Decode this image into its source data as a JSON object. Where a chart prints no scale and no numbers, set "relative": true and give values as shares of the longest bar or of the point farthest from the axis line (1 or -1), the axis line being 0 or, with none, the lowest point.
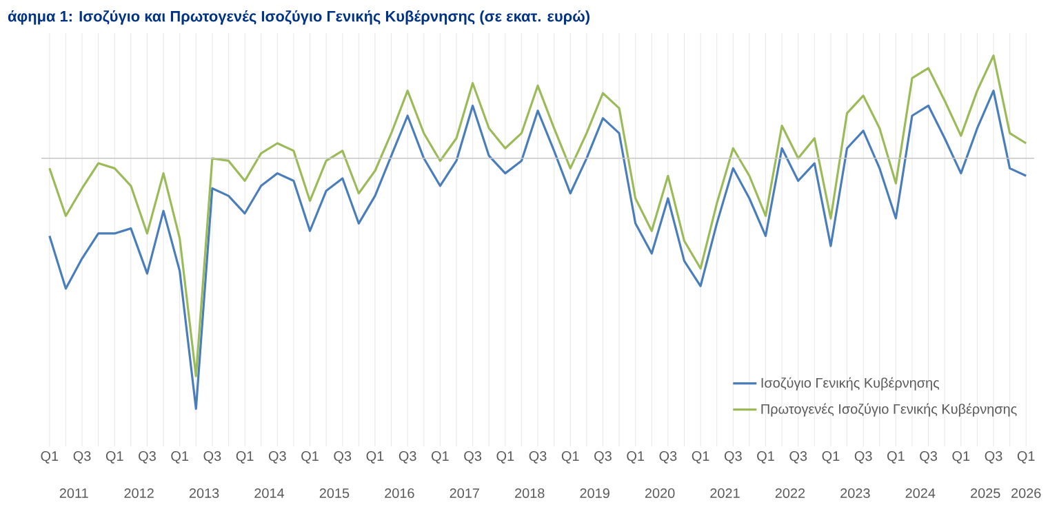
{
  "chart_data": {
    "type": "line",
    "title": "άφημα 1: Ισοζύγιο και Πρωτογενές Ισοζύγιο Γενικής Κυβέρνησης (σε εκατ. ευρώ)",
    "relative": true,
    "grid": "x",
    "legend": "bottom right",
    "marker": "none",
    "line_style": "solid",
    "categories": [
      "Q1",
      null,
      "Q3",
      null,
      "Q1",
      null,
      "Q3",
      null,
      "Q1",
      null,
      "Q3",
      null,
      "Q1",
      null,
      "Q3",
      null,
      "Q1",
      null,
      "Q3",
      null,
      "Q1",
      null,
      "Q3",
      null,
      "Q1",
      null,
      "Q3",
      null,
      "Q1",
      null,
      "Q3",
      null,
      "Q1",
      null,
      "Q3",
      null,
      "Q1",
      null,
      "Q3",
      null,
      "Q1",
      null,
      "Q3",
      null,
      "Q1",
      null,
      "Q3",
      null,
      "Q1",
      null,
      "Q3",
      null,
      "Q1",
      null,
      "Q3",
      null,
      "Q1",
      null,
      "Q3",
      null,
      "Q1"
    ],
    "annotations": [
      "2011",
      "2012",
      "2013",
      "2014",
      "2015",
      "2016",
      "2017",
      "2018",
      "2019",
      "2020",
      "2021",
      "2022",
      "2023",
      "2024",
      "2025",
      "2026"
    ],
    "series": [
      {
        "name": "Ισοζύγιο Γενικής Κυβέρνησης",
        "color": "#4a7ebb",
        "values": [
          -0.31,
          -0.52,
          -0.4,
          -0.3,
          -0.3,
          -0.28,
          -0.46,
          -0.21,
          -0.45,
          -1.0,
          -0.12,
          -0.15,
          -0.22,
          -0.11,
          -0.06,
          -0.09,
          -0.29,
          -0.13,
          -0.08,
          -0.26,
          -0.15,
          0.01,
          0.17,
          0.0,
          -0.11,
          -0.01,
          0.21,
          0.01,
          -0.06,
          -0.01,
          0.19,
          0.03,
          -0.14,
          0.0,
          0.16,
          0.1,
          -0.26,
          -0.38,
          -0.16,
          -0.41,
          -0.51,
          -0.26,
          -0.04,
          -0.16,
          -0.31,
          0.04,
          -0.09,
          -0.02,
          -0.35,
          0.04,
          0.11,
          -0.04,
          -0.24,
          0.17,
          0.21,
          0.08,
          -0.06,
          0.12,
          0.27,
          -0.04,
          -0.07
        ]
      },
      {
        "name": "Πρωτογενές Ισοζύγιο Γενικής Κυβέρνησης",
        "color": "#9bbb59",
        "values": [
          -0.04,
          -0.23,
          -0.12,
          -0.02,
          -0.04,
          -0.11,
          -0.3,
          -0.06,
          -0.32,
          -0.87,
          0.0,
          -0.01,
          -0.09,
          0.02,
          0.06,
          0.03,
          -0.17,
          -0.01,
          0.03,
          -0.14,
          -0.05,
          0.1,
          0.27,
          0.1,
          -0.01,
          0.08,
          0.3,
          0.12,
          0.04,
          0.1,
          0.29,
          0.12,
          -0.04,
          0.1,
          0.26,
          0.2,
          -0.16,
          -0.29,
          -0.07,
          -0.33,
          -0.44,
          -0.18,
          0.04,
          -0.07,
          -0.23,
          0.13,
          0.0,
          0.08,
          -0.24,
          0.18,
          0.25,
          0.12,
          -0.1,
          0.32,
          0.36,
          0.23,
          0.09,
          0.27,
          0.41,
          0.1,
          0.06
        ]
      }
    ]
  }
}
